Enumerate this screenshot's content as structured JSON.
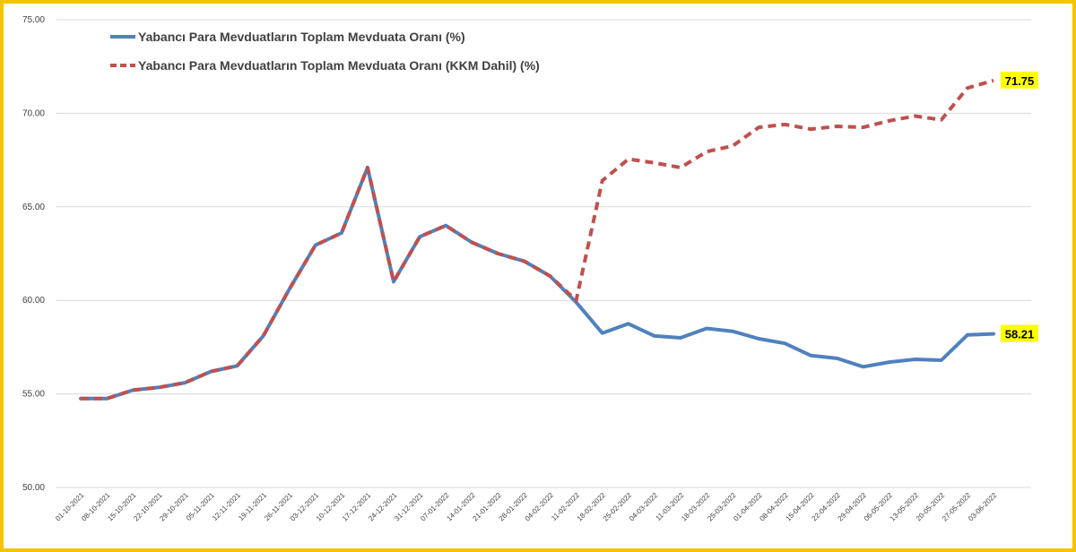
{
  "chart_data": {
    "type": "line",
    "title": "",
    "xlabel": "",
    "ylabel": "",
    "ylim": [
      50,
      75
    ],
    "yticks": [
      "50.00",
      "55.00",
      "60.00",
      "65.00",
      "70.00",
      "75.00"
    ],
    "grid": true,
    "legend_position": "top-left",
    "categories": [
      "01-10-2021",
      "08-10-2021",
      "15-10-2021",
      "22-10-2021",
      "29-10-2021",
      "05-11-2021",
      "12-11-2021",
      "19-11-2021",
      "26-11-2021",
      "03-12-2021",
      "10-12-2021",
      "17-12-2021",
      "24-12-2021",
      "31-12-2021",
      "07-01-2022",
      "14-01-2022",
      "21-01-2022",
      "28-01-2022",
      "04-02-2022",
      "11-02-2022",
      "18-02-2022",
      "25-02-2022",
      "04-03-2022",
      "11-03-2022",
      "18-03-2022",
      "25-03-2022",
      "01-04-2022",
      "08-04-2022",
      "15-04-2022",
      "22-04-2022",
      "29-04-2022",
      "06-05-2022",
      "13-05-2022",
      "20-05-2022",
      "27-05-2022",
      "03-06-2022"
    ],
    "series": [
      {
        "name": "Yabancı Para Mevduatların Toplam Mevduata Oranı (%)",
        "color": "#4f81bd",
        "style": "solid",
        "values": [
          54.75,
          54.75,
          55.2,
          55.35,
          55.6,
          56.2,
          56.5,
          58.1,
          60.6,
          62.95,
          63.6,
          67.1,
          61.0,
          63.4,
          64.0,
          63.1,
          62.5,
          62.1,
          61.3,
          59.9,
          58.25,
          58.75,
          58.1,
          58.0,
          58.5,
          58.35,
          57.95,
          57.7,
          57.05,
          56.9,
          56.45,
          56.7,
          56.85,
          56.8,
          58.15,
          58.21
        ],
        "end_label": "58.21"
      },
      {
        "name": "Yabancı Para Mevduatların Toplam Mevduata Oranı (KKM Dahil) (%)",
        "color": "#c0504d",
        "style": "dashed",
        "values": [
          54.75,
          54.75,
          55.2,
          55.35,
          55.6,
          56.2,
          56.5,
          58.1,
          60.6,
          62.95,
          63.6,
          67.1,
          61.0,
          63.4,
          64.0,
          63.1,
          62.5,
          62.1,
          61.3,
          60.0,
          66.4,
          67.55,
          67.35,
          67.1,
          67.95,
          68.25,
          69.25,
          69.4,
          69.15,
          69.3,
          69.25,
          69.6,
          69.85,
          69.65,
          71.35,
          71.75
        ],
        "end_label": "71.75"
      }
    ],
    "end_label_bg": "#ffff00"
  }
}
